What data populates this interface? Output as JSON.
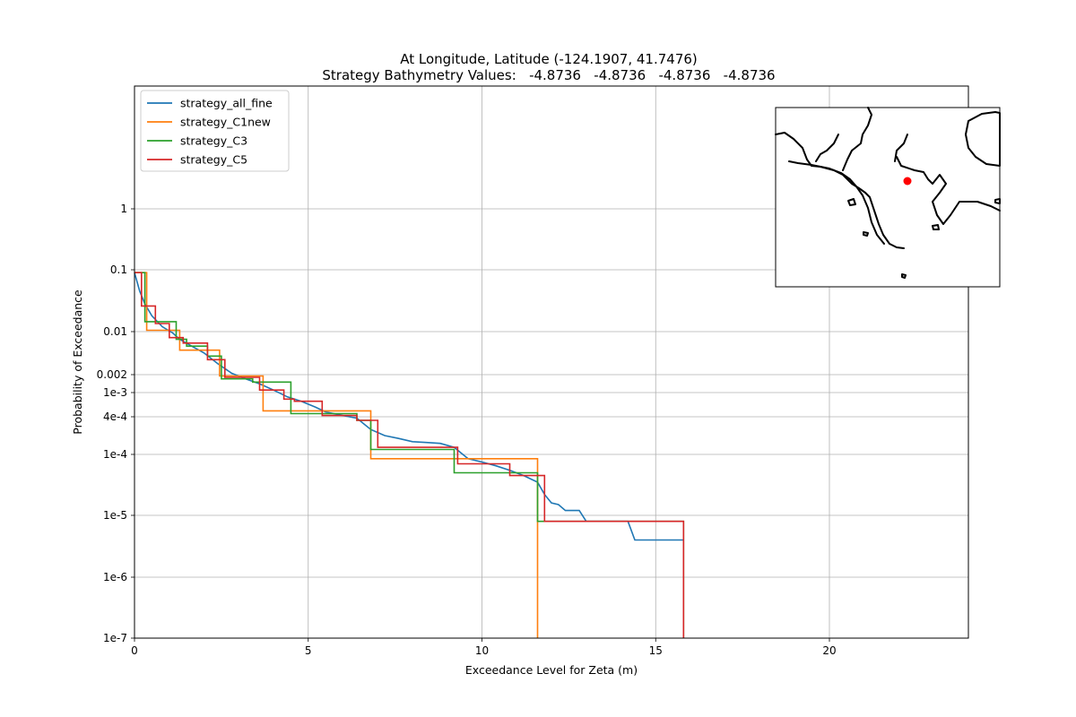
{
  "chart_data": {
    "type": "line",
    "title": "At Longitude, Latitude (-124.1907,  41.7476)",
    "subtitle": "Strategy Bathymetry Values:   -4.8736   -4.8736   -4.8736   -4.8736",
    "xlabel": "Exceedance Level for Zeta (m)",
    "ylabel": "Probability of Exceedance",
    "xlim": [
      0,
      24
    ],
    "ylim_scale": "log",
    "grid": true,
    "legend_position": "top-left",
    "x_ticks": [
      {
        "value": 0,
        "label": "0"
      },
      {
        "value": 5,
        "label": "5"
      },
      {
        "value": 10,
        "label": "10"
      },
      {
        "value": 15,
        "label": "15"
      },
      {
        "value": 20,
        "label": "20"
      }
    ],
    "y_ticks": [
      {
        "value": 1,
        "label": "1"
      },
      {
        "value": 0.1,
        "label": "0.1"
      },
      {
        "value": 0.01,
        "label": "0.01"
      },
      {
        "value": 0.002,
        "label": "0.002"
      },
      {
        "value": 0.001,
        "label": "1e-3"
      },
      {
        "value": 0.0004,
        "label": "4e-4"
      },
      {
        "value": 0.0001,
        "label": "1e-4"
      },
      {
        "value": 1e-05,
        "label": "1e-5"
      },
      {
        "value": 1e-06,
        "label": "1e-6"
      },
      {
        "value": 1e-07,
        "label": "1e-7"
      }
    ],
    "series": [
      {
        "name": "strategy_all_fine",
        "color": "#1f77b4",
        "points": [
          [
            0,
            0.09
          ],
          [
            0.15,
            0.045
          ],
          [
            0.3,
            0.028
          ],
          [
            0.5,
            0.018
          ],
          [
            0.8,
            0.012
          ],
          [
            1.1,
            0.0095
          ],
          [
            1.3,
            0.0075
          ],
          [
            1.6,
            0.006
          ],
          [
            2.0,
            0.0045
          ],
          [
            2.4,
            0.003
          ],
          [
            2.8,
            0.0021
          ],
          [
            3.2,
            0.0017
          ],
          [
            3.6,
            0.0014
          ],
          [
            4.0,
            0.0011
          ],
          [
            4.4,
            0.00085
          ],
          [
            4.8,
            0.00072
          ],
          [
            5.2,
            0.00058
          ],
          [
            5.5,
            0.00048
          ],
          [
            6.0,
            0.00042
          ],
          [
            6.4,
            0.00038
          ],
          [
            6.8,
            0.00025
          ],
          [
            7.2,
            0.0002
          ],
          [
            7.6,
            0.00018
          ],
          [
            8.0,
            0.00016
          ],
          [
            8.4,
            0.000155
          ],
          [
            8.8,
            0.00015
          ],
          [
            9.2,
            0.00013
          ],
          [
            9.6,
            8.5e-05
          ],
          [
            10.0,
            7.5e-05
          ],
          [
            10.4,
            6.5e-05
          ],
          [
            10.8,
            5.5e-05
          ],
          [
            11.2,
            4.5e-05
          ],
          [
            11.6,
            3.5e-05
          ],
          [
            11.8,
            2.2e-05
          ],
          [
            12.0,
            1.6e-05
          ],
          [
            12.2,
            1.5e-05
          ],
          [
            12.4,
            1.2e-05
          ],
          [
            12.8,
            1.2e-05
          ],
          [
            13.0,
            8e-06
          ],
          [
            14.2,
            8e-06
          ],
          [
            14.4,
            4e-06
          ],
          [
            15.8,
            4e-06
          ]
        ]
      },
      {
        "name": "strategy_C1new",
        "color": "#ff7f0e",
        "points": [
          [
            0,
            0.09
          ],
          [
            0.35,
            0.09
          ],
          [
            0.35,
            0.0105
          ],
          [
            1.3,
            0.0105
          ],
          [
            1.3,
            0.005
          ],
          [
            2.45,
            0.005
          ],
          [
            2.45,
            0.0019
          ],
          [
            3.7,
            0.0019
          ],
          [
            3.7,
            0.0005
          ],
          [
            6.8,
            0.0005
          ],
          [
            6.8,
            8.5e-05
          ],
          [
            11.6,
            8.5e-05
          ],
          [
            11.6,
            1e-07
          ]
        ]
      },
      {
        "name": "strategy_C3",
        "color": "#2ca02c",
        "points": [
          [
            0,
            0.09
          ],
          [
            0.3,
            0.09
          ],
          [
            0.3,
            0.0145
          ],
          [
            1.2,
            0.0145
          ],
          [
            1.2,
            0.0075
          ],
          [
            1.5,
            0.0075
          ],
          [
            1.5,
            0.0058
          ],
          [
            2.1,
            0.0058
          ],
          [
            2.1,
            0.004
          ],
          [
            2.5,
            0.004
          ],
          [
            2.5,
            0.0017
          ],
          [
            3.4,
            0.0017
          ],
          [
            3.4,
            0.0015
          ],
          [
            4.5,
            0.0015
          ],
          [
            4.5,
            0.00045
          ],
          [
            6.4,
            0.00045
          ],
          [
            6.4,
            0.00035
          ],
          [
            6.8,
            0.00035
          ],
          [
            6.8,
            0.00012
          ],
          [
            9.2,
            0.00012
          ],
          [
            9.2,
            5e-05
          ],
          [
            11.6,
            5e-05
          ],
          [
            11.6,
            8e-06
          ],
          [
            15.8,
            8e-06
          ],
          [
            15.8,
            1e-07
          ]
        ]
      },
      {
        "name": "strategy_C5",
        "color": "#d62728",
        "points": [
          [
            0,
            0.09
          ],
          [
            0.2,
            0.09
          ],
          [
            0.2,
            0.026
          ],
          [
            0.6,
            0.026
          ],
          [
            0.6,
            0.0135
          ],
          [
            1.0,
            0.0135
          ],
          [
            1.0,
            0.008
          ],
          [
            1.4,
            0.008
          ],
          [
            1.4,
            0.0065
          ],
          [
            2.1,
            0.0065
          ],
          [
            2.1,
            0.0035
          ],
          [
            2.6,
            0.0035
          ],
          [
            2.6,
            0.0018
          ],
          [
            3.6,
            0.0018
          ],
          [
            3.6,
            0.0011
          ],
          [
            4.3,
            0.0011
          ],
          [
            4.3,
            0.00078
          ],
          [
            4.6,
            0.00078
          ],
          [
            4.6,
            0.00072
          ],
          [
            5.4,
            0.00072
          ],
          [
            5.4,
            0.00042
          ],
          [
            6.4,
            0.00042
          ],
          [
            6.4,
            0.00035
          ],
          [
            7.0,
            0.00035
          ],
          [
            7.0,
            0.00013
          ],
          [
            9.3,
            0.00013
          ],
          [
            9.3,
            7e-05
          ],
          [
            10.8,
            7e-05
          ],
          [
            10.8,
            4.5e-05
          ],
          [
            11.8,
            4.5e-05
          ],
          [
            11.8,
            8e-06
          ],
          [
            15.8,
            8e-06
          ],
          [
            15.8,
            1e-07
          ]
        ]
      }
    ],
    "inset_map": {
      "marker_color": "#ff0000",
      "coastline_color": "#000000"
    }
  }
}
